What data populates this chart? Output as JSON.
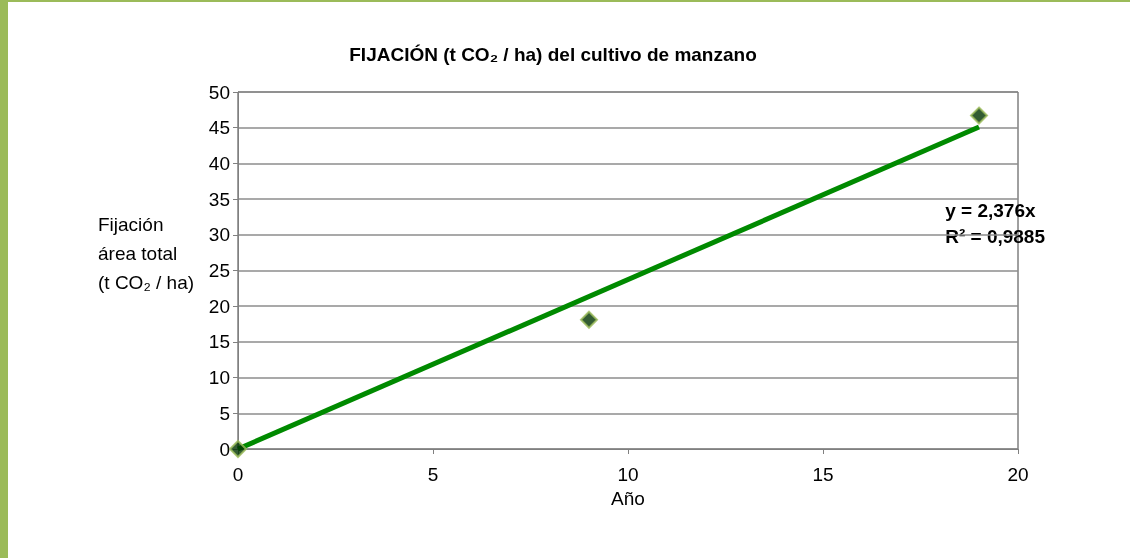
{
  "chart_data": {
    "type": "scatter",
    "title": "FIJACIÓN (t CO₂ / ha) del cultivo de manzano",
    "xlabel": "Año",
    "ylabel": "Fijación\nárea total\n(t CO₂ / ha)",
    "annotations": [
      "y = 2,376x\nR² = 0,9885"
    ],
    "x": [
      0,
      9,
      19
    ],
    "series": [
      {
        "color": "#003300",
        "values": [
          0,
          18.1,
          46.7
        ]
      },
      {
        "type": "line",
        "color": "#008a00",
        "x": [
          0,
          19
        ],
        "values": [
          0,
          45.1
        ],
        "marker": "none"
      }
    ],
    "xlim": [
      0,
      20
    ],
    "xticks": [
      0,
      5,
      10,
      15,
      20
    ],
    "ylim": [
      0,
      50
    ],
    "yticks": [
      0,
      5,
      10,
      15,
      20,
      25,
      30,
      35,
      40,
      45,
      50
    ],
    "grid": "y",
    "marker": "diamond"
  }
}
